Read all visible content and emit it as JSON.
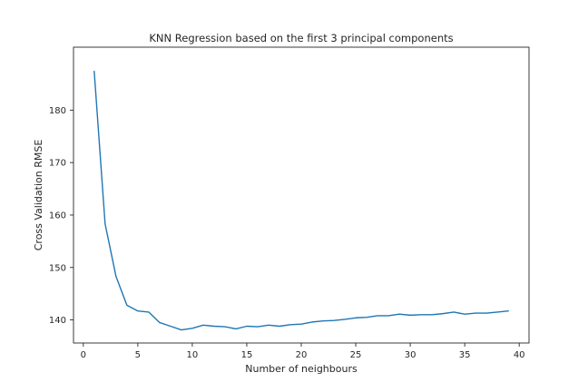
{
  "chart_data": {
    "type": "line",
    "title": "KNN Regression based on the first 3 principal components",
    "xlabel": "Number of neighbours",
    "ylabel": "Cross Validation RMSE",
    "xlim": [
      -0.9,
      40.9
    ],
    "ylim": [
      135.6,
      192.0
    ],
    "xticks": [
      0,
      5,
      10,
      15,
      20,
      25,
      30,
      35,
      40
    ],
    "yticks": [
      140,
      150,
      160,
      170,
      180
    ],
    "grid": false,
    "line_color": "#1f77b4",
    "series": [
      {
        "x": [
          1,
          2,
          3,
          4,
          5,
          6,
          7,
          8,
          9,
          10,
          11,
          12,
          13,
          14,
          15,
          16,
          17,
          18,
          19,
          20,
          21,
          22,
          23,
          24,
          25,
          26,
          27,
          28,
          29,
          30,
          31,
          32,
          33,
          34,
          35,
          36,
          37,
          38,
          39
        ],
        "values": [
          187.4,
          158.3,
          148.3,
          142.8,
          141.7,
          141.5,
          139.5,
          138.8,
          138.1,
          138.4,
          139.0,
          138.8,
          138.7,
          138.3,
          138.8,
          138.7,
          139.0,
          138.8,
          139.1,
          139.2,
          139.6,
          139.8,
          139.9,
          140.1,
          140.4,
          140.5,
          140.8,
          140.8,
          141.1,
          140.9,
          141.0,
          141.0,
          141.2,
          141.5,
          141.1,
          141.3,
          141.3,
          141.5,
          141.7
        ]
      }
    ]
  }
}
